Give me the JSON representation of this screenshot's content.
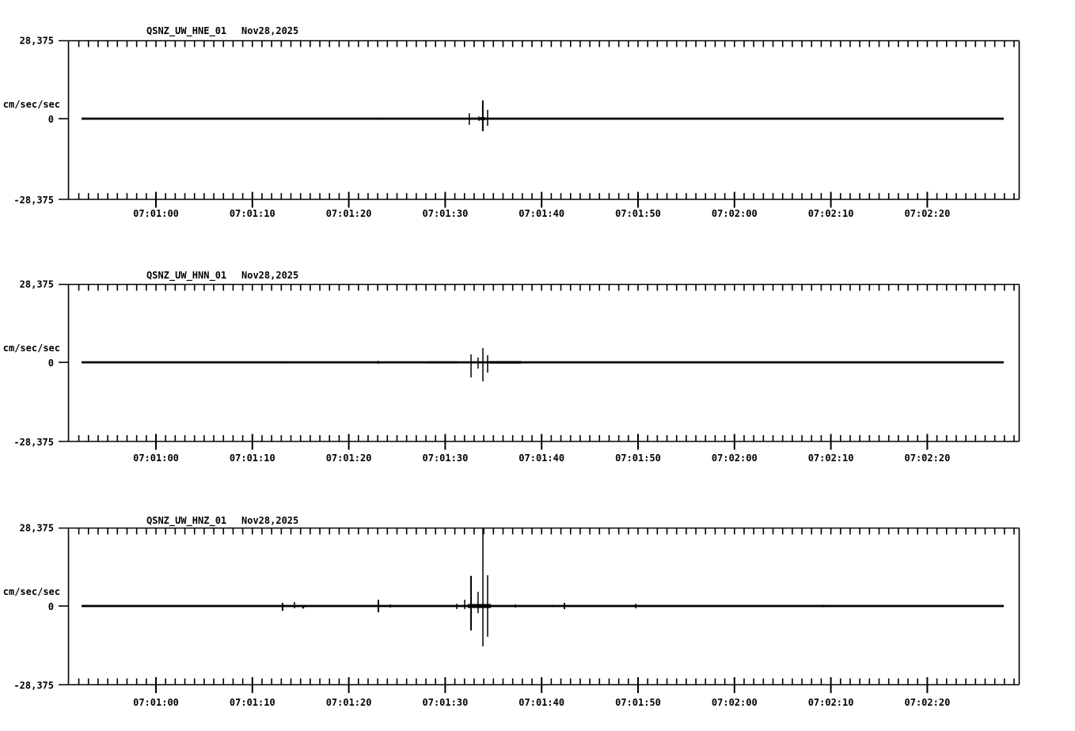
{
  "page": {
    "background": "#ffffff",
    "ink": "#000000"
  },
  "chart_data": {
    "type": "line",
    "kind": "seismogram-3-channel",
    "date": "Nov28,2025",
    "units_label": "cm/sec/sec",
    "y_axis": {
      "top_label": "28,375",
      "zero_label": "0",
      "bottom_label": "-28,375",
      "ylim": [
        -28.375,
        28.375
      ]
    },
    "x_axis": {
      "tick_labels": [
        "07:01:00",
        "07:01:10",
        "07:01:20",
        "07:01:30",
        "07:01:40",
        "07:01:50",
        "07:02:00",
        "07:02:10",
        "07:02:20"
      ],
      "tick_seconds": [
        60,
        70,
        80,
        90,
        100,
        110,
        120,
        130,
        140
      ],
      "minor_step_seconds": 1,
      "axis_start_seconds": 51,
      "axis_end_seconds": 149.5,
      "trace_start_seconds": 52.3,
      "trace_end_seconds": 147.9
    },
    "panels": [
      {
        "title": "QSNZ_UW_HNE_01",
        "channel": "HNE",
        "spikes": [
          [
            83.1,
            0.4,
            0.4
          ],
          [
            92.5,
            1.9,
            2.2
          ],
          [
            93.5,
            0.8,
            0.8
          ],
          [
            93.9,
            6.4,
            4.4,
            2
          ],
          [
            94.4,
            3.1,
            2.5
          ]
        ],
        "bands": [
          [
            93.65,
            94.15,
            0.55
          ]
        ]
      },
      {
        "title": "QSNZ_UW_HNN_01",
        "channel": "HNN",
        "spikes": [
          [
            60.0,
            0.28,
            0.28
          ],
          [
            66.8,
            0.28,
            0.28
          ],
          [
            73.1,
            0.4,
            0.4
          ],
          [
            83.05,
            0.55,
            0.55
          ],
          [
            92.68,
            2.8,
            5.3
          ],
          [
            93.41,
            1.7,
            2.2
          ],
          [
            93.91,
            5.0,
            6.7
          ],
          [
            94.4,
            2.5,
            3.6
          ],
          [
            118.1,
            0.28,
            0.28
          ],
          [
            137.4,
            0.28,
            0.28
          ],
          [
            141.1,
            0.28,
            0.28
          ]
        ],
        "bands": [
          [
            88.3,
            91.3,
            0.35
          ],
          [
            94.6,
            97.9,
            0.45
          ]
        ]
      },
      {
        "title": "QSNZ_UW_HNZ_01",
        "channel": "HNZ",
        "spikes": [
          [
            70.3,
            0.28,
            0.28
          ],
          [
            73.13,
            1.1,
            1.7,
            2
          ],
          [
            74.37,
            1.4,
            0.8
          ],
          [
            75.27,
            0.3,
            0.9,
            2.5
          ],
          [
            83.07,
            2.2,
            2.2,
            2
          ],
          [
            84.3,
            0.55,
            0.55
          ],
          [
            91.2,
            0.8,
            1.1
          ],
          [
            92.02,
            2.2,
            1.1
          ],
          [
            92.68,
            10.6,
            8.6,
            2
          ],
          [
            93.41,
            5.0,
            2.5
          ],
          [
            93.91,
            27.8,
            14.2
          ],
          [
            94.4,
            10.8,
            10.8
          ],
          [
            97.27,
            0.55,
            0.55
          ],
          [
            101.13,
            0.4,
            0.4
          ],
          [
            102.36,
            1.1,
            1.1,
            1.8
          ],
          [
            104.8,
            0.28,
            0.28
          ],
          [
            109.76,
            0.85,
            0.85
          ],
          [
            129.2,
            0.4,
            0.4,
            2
          ]
        ],
        "bands": [
          [
            92.35,
            94.75,
            0.7
          ],
          [
            128.9,
            129.7,
            0.3
          ]
        ]
      }
    ]
  }
}
